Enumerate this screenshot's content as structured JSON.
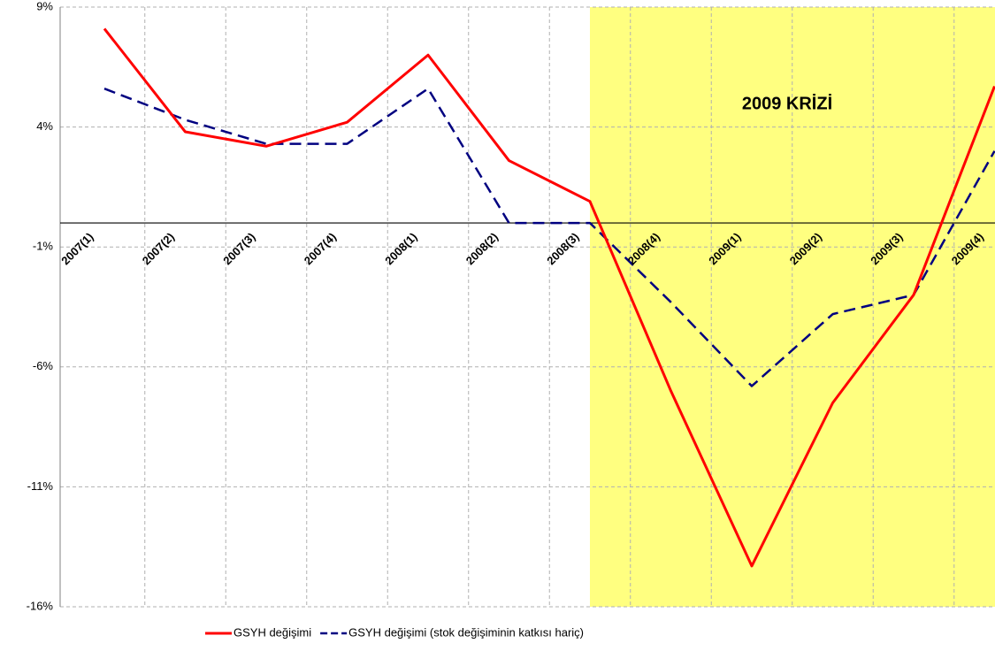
{
  "chart_data": {
    "type": "line",
    "annotation": "2009 KRİZİ",
    "categories": [
      "2007(1)",
      "2007(2)",
      "2007(3)",
      "2007(4)",
      "2008(1)",
      "2008(2)",
      "2008(3)",
      "2008(4)",
      "2009(1)",
      "2009(2)",
      "2009(3)",
      "2009(4)"
    ],
    "series": [
      {
        "name": "GSYH değişimi",
        "color": "#ff0000",
        "dash": "solid",
        "values": [
          8.1,
          3.8,
          3.2,
          4.2,
          7.0,
          2.6,
          0.9,
          -7.0,
          -14.3,
          -7.5,
          -3.0,
          5.7
        ]
      },
      {
        "name": "GSYH değişimi (stok değişiminin katkısı hariç)",
        "color": "#000080",
        "dash": "dashed",
        "values": [
          5.6,
          4.3,
          3.3,
          3.3,
          5.6,
          0,
          0,
          -3.3,
          -6.8,
          -3.8,
          -3.0,
          3.0
        ]
      }
    ],
    "ylim": [
      -16,
      9
    ],
    "yticks": [
      {
        "value": -16,
        "label": "-16%"
      },
      {
        "value": -11,
        "label": "-11%"
      },
      {
        "value": -6,
        "label": "-6%"
      },
      {
        "value": -1,
        "label": "-1%"
      },
      {
        "value": 4,
        "label": "4%"
      },
      {
        "value": 9,
        "label": "9%"
      }
    ],
    "grid": true,
    "legend": "bottom"
  }
}
